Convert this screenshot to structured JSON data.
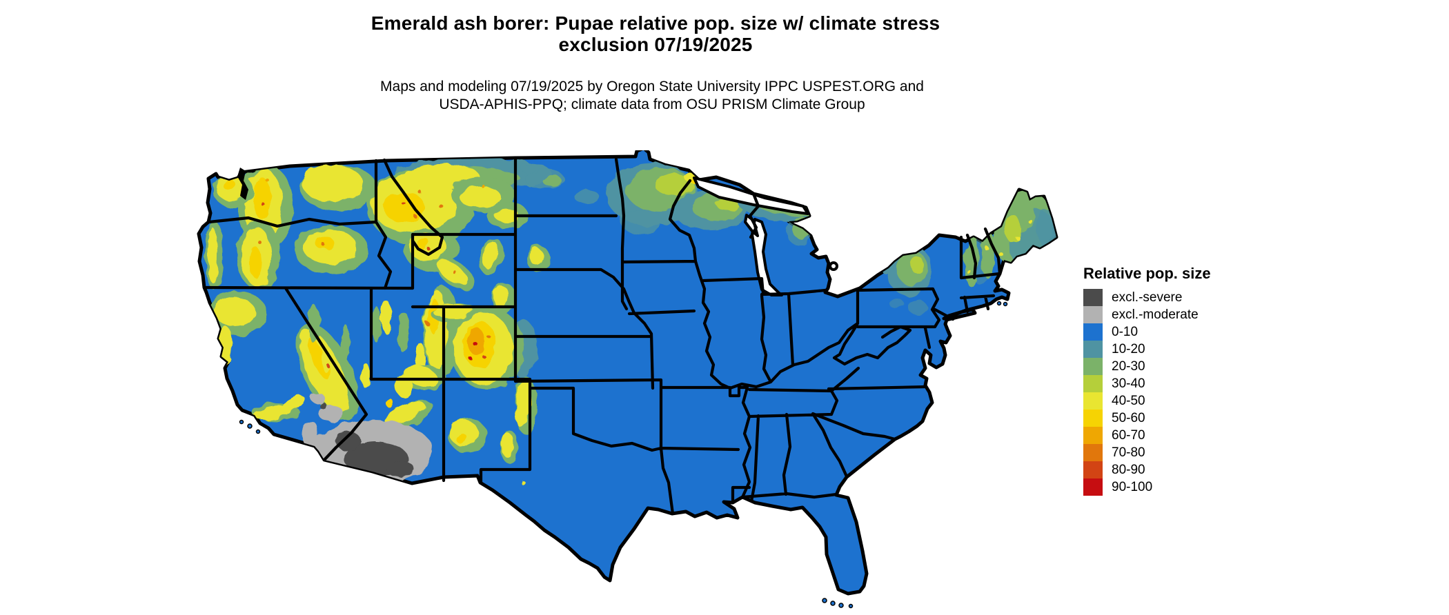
{
  "page": {
    "background": "#ffffff",
    "text_color": "#000000"
  },
  "title": {
    "line1": "Emerald ash borer: Pupae relative pop. size w/ climate stress",
    "line2": "exclusion 07/19/2025"
  },
  "subtitle": {
    "line1": "Maps and modeling 07/19/2025 by Oregon State University IPPC USPEST.ORG and",
    "line2": "USDA-APHIS-PPQ; climate data from OSU PRISM Climate Group"
  },
  "legend": {
    "title": "Relative pop. size",
    "items": [
      {
        "label": "excl.-severe",
        "color": "#4b4b4b"
      },
      {
        "label": "excl.-moderate",
        "color": "#b2b2b2"
      },
      {
        "label": "0-10",
        "color": "#1d72cf"
      },
      {
        "label": "10-20",
        "color": "#4f93a2"
      },
      {
        "label": "20-30",
        "color": "#7bb269"
      },
      {
        "label": "30-40",
        "color": "#b5cf3a"
      },
      {
        "label": "40-50",
        "color": "#e9e531"
      },
      {
        "label": "50-60",
        "color": "#f6d303"
      },
      {
        "label": "60-70",
        "color": "#efa702"
      },
      {
        "label": "70-80",
        "color": "#e1770c"
      },
      {
        "label": "80-90",
        "color": "#d24414"
      },
      {
        "label": "90-100",
        "color": "#c60d11"
      }
    ]
  },
  "map": {
    "region": "Continental United States",
    "border_color": "#000000",
    "water_color": "#ffffff",
    "base_fill_category": "0-10"
  }
}
